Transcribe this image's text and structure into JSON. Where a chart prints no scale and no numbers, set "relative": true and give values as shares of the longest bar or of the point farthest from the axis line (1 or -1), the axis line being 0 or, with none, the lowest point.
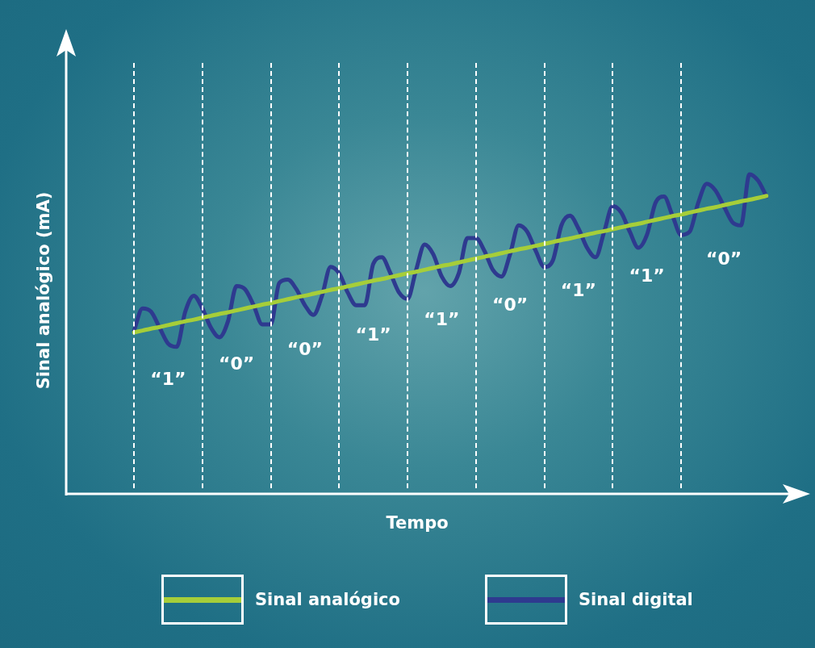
{
  "chart_data": {
    "type": "line",
    "xlabel": "Tempo",
    "ylabel": "Sinal analógico (mA)",
    "relative": true,
    "legend": "bottom",
    "grid": "x",
    "categories": [
      null,
      null,
      null,
      null,
      null,
      null,
      null,
      null,
      null,
      null,
      null,
      null,
      null,
      null,
      null,
      null,
      null,
      null,
      null,
      null,
      null,
      null,
      null,
      null,
      null,
      null,
      null,
      null,
      null,
      null,
      null,
      null,
      null,
      null,
      null,
      null,
      null,
      null,
      null,
      null,
      null,
      null,
      null,
      null,
      null,
      null,
      null,
      null,
      null,
      null,
      null,
      null,
      null,
      null,
      null,
      null,
      null,
      null,
      null,
      null,
      null,
      null,
      null,
      null,
      null,
      null,
      null,
      null,
      null,
      null,
      null,
      null,
      null,
      null,
      null
    ],
    "series": [
      {
        "name": "Sinal analógico",
        "color": "#a6ce39",
        "values": [
          0.505,
          0.511,
          0.517,
          0.522,
          0.528,
          0.534,
          0.54,
          0.545,
          0.551,
          0.557,
          0.563,
          0.568,
          0.574,
          0.58,
          0.586,
          0.592,
          0.597,
          0.603,
          0.609,
          0.615,
          0.62,
          0.626,
          0.632,
          0.638,
          0.643,
          0.649,
          0.655,
          0.661,
          0.667,
          0.672,
          0.678,
          0.684,
          0.69,
          0.695,
          0.701,
          0.707,
          0.713,
          0.718,
          0.724,
          0.73,
          0.736,
          0.742,
          0.747,
          0.753,
          0.759,
          0.765,
          0.77,
          0.776,
          0.782,
          0.788,
          0.794,
          0.799,
          0.805,
          0.811,
          0.817,
          0.822,
          0.828,
          0.834,
          0.84,
          0.845,
          0.851,
          0.857,
          0.863,
          0.869,
          0.874,
          0.88,
          0.886,
          0.892,
          0.897,
          0.903,
          0.909,
          0.915,
          0.92,
          0.926,
          0.932
        ]
      },
      {
        "name": "Sinal digital",
        "color": "#2e3a8f",
        "values": [
          0.51,
          0.58,
          0.57,
          0.52,
          0.47,
          0.46,
          0.57,
          0.62,
          0.58,
          0.52,
          0.49,
          0.54,
          0.65,
          0.64,
          0.59,
          0.53,
          0.53,
          0.66,
          0.67,
          0.64,
          0.59,
          0.56,
          0.62,
          0.71,
          0.69,
          0.63,
          0.59,
          0.59,
          0.72,
          0.74,
          0.69,
          0.63,
          0.61,
          0.7,
          0.78,
          0.75,
          0.68,
          0.65,
          0.69,
          0.8,
          0.8,
          0.76,
          0.7,
          0.68,
          0.75,
          0.84,
          0.82,
          0.76,
          0.71,
          0.73,
          0.84,
          0.87,
          0.83,
          0.77,
          0.74,
          0.82,
          0.9,
          0.88,
          0.82,
          0.77,
          0.81,
          0.91,
          0.93,
          0.87,
          0.81,
          0.82,
          0.91,
          0.97,
          0.95,
          0.9,
          0.85,
          0.84,
          1.0,
          0.98,
          0.93
        ]
      }
    ],
    "annotations": [
      "“1”",
      "“0”",
      "“0”",
      "“1”",
      "“1”",
      "“0”",
      "“1”",
      "“1”",
      "“0”"
    ]
  }
}
